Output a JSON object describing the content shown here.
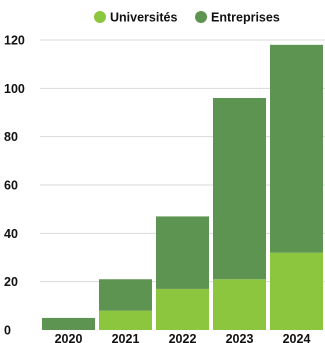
{
  "chart_data": {
    "type": "bar",
    "stacked": true,
    "categories": [
      "2020",
      "2021",
      "2022",
      "2023",
      "2024"
    ],
    "series": [
      {
        "name": "Universités",
        "color": "#8cc63f",
        "values": [
          0,
          8,
          17,
          21,
          32
        ]
      },
      {
        "name": "Entreprises",
        "color": "#5e9451",
        "values": [
          5,
          13,
          30,
          75,
          86
        ]
      }
    ],
    "ylim": [
      0,
      120
    ],
    "yticks": [
      0,
      20,
      40,
      60,
      80,
      100,
      120
    ],
    "grid": true,
    "legend_position": "top"
  }
}
